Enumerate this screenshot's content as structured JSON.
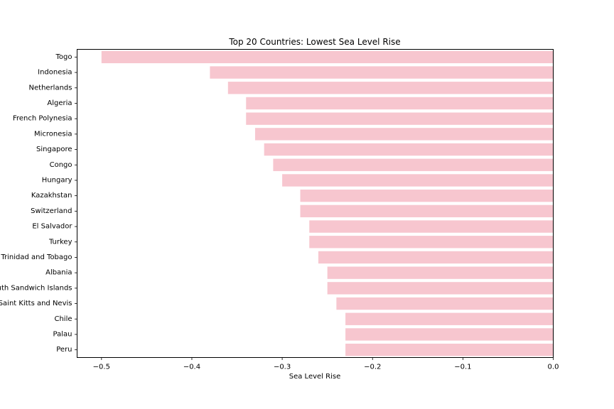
{
  "chart_data": {
    "type": "bar",
    "orientation": "horizontal",
    "title": "Top 20 Countries: Lowest Sea Level Rise",
    "xlabel": "Sea Level Rise",
    "ylabel": "",
    "xlim": [
      -0.527,
      0.0
    ],
    "xticks": [
      -0.5,
      -0.4,
      -0.3,
      -0.2,
      -0.1,
      0.0
    ],
    "xtick_labels": [
      "−0.5",
      "−0.4",
      "−0.3",
      "−0.2",
      "−0.1",
      "0.0"
    ],
    "grid": false,
    "bar_color": "#f7c6cf",
    "categories": [
      "Togo",
      "Indonesia",
      "Netherlands",
      "Algeria",
      "French Polynesia",
      "Micronesia",
      "Singapore",
      "Congo",
      "Hungary",
      "Kazakhstan",
      "Switzerland",
      "El Salvador",
      "Turkey",
      "Trinidad and Tobago",
      "Albania",
      "South Georgia and the South Sandwich Islands",
      "Saint Kitts and Nevis",
      "Chile",
      "Palau",
      "Peru"
    ],
    "values": [
      -0.5,
      -0.38,
      -0.36,
      -0.34,
      -0.34,
      -0.33,
      -0.32,
      -0.31,
      -0.3,
      -0.28,
      -0.28,
      -0.27,
      -0.27,
      -0.26,
      -0.25,
      -0.25,
      -0.24,
      -0.23,
      -0.23,
      -0.23
    ]
  }
}
